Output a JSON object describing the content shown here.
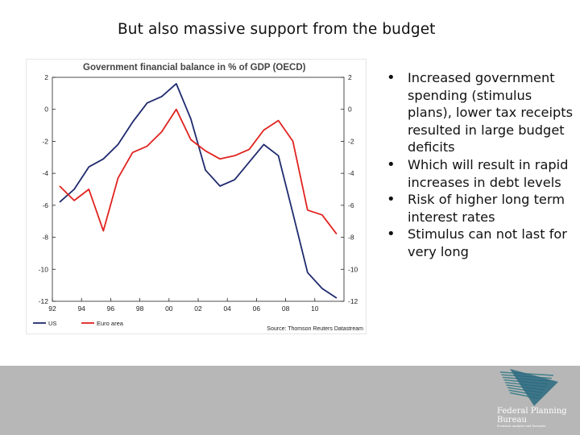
{
  "slide": {
    "title": "But also massive support from the budget"
  },
  "bullets": [
    "Increased government spending (stimulus plans), lower tax receipts resulted in large budget deficits",
    "Which will result in rapid increases in debt levels",
    "Risk of higher long term interest rates",
    "Stimulus can not last for very long"
  ],
  "chart_data": {
    "type": "line",
    "title": "Government financial balance in % of GDP (OECD)",
    "source": "Source: Thomson Reuters Datastream",
    "xlabel": "",
    "ylabel": "",
    "x": [
      1992,
      1993,
      1994,
      1995,
      1996,
      1997,
      1998,
      1999,
      2000,
      2001,
      2002,
      2003,
      2004,
      2005,
      2006,
      2007,
      2008,
      2009,
      2010,
      2011
    ],
    "xticks": [
      "92",
      "94",
      "96",
      "98",
      "00",
      "02",
      "04",
      "06",
      "08",
      "10"
    ],
    "ylim": [
      -12,
      2
    ],
    "yticks": [
      "2",
      "0",
      "-2",
      "-4",
      "-6",
      "-8",
      "-10",
      "-12"
    ],
    "grid": false,
    "legend_position": "bottom-left",
    "series": [
      {
        "name": "US",
        "color": "#1f2a6e",
        "values": [
          -5.8,
          -5.0,
          -3.6,
          -3.1,
          -2.2,
          -0.8,
          0.4,
          0.8,
          1.6,
          -0.6,
          -3.8,
          -4.8,
          -4.4,
          -3.3,
          -2.2,
          -2.9,
          -6.5,
          -10.2,
          -11.2,
          -11.8
        ]
      },
      {
        "name": "Euro area",
        "color": "#e0231f",
        "values": [
          -4.8,
          -5.7,
          -5.0,
          -7.6,
          -4.3,
          -2.7,
          -2.3,
          -1.4,
          0.0,
          -1.9,
          -2.6,
          -3.1,
          -2.9,
          -2.5,
          -1.3,
          -0.7,
          -2.0,
          -6.3,
          -6.6,
          -7.8
        ]
      }
    ]
  },
  "logo": {
    "name": "Federal Planning Bureau",
    "tagline": "Economic analyses and forecasts",
    "colors": {
      "stripes": "#3f7f8a",
      "wedge": "#2c6a80"
    }
  }
}
